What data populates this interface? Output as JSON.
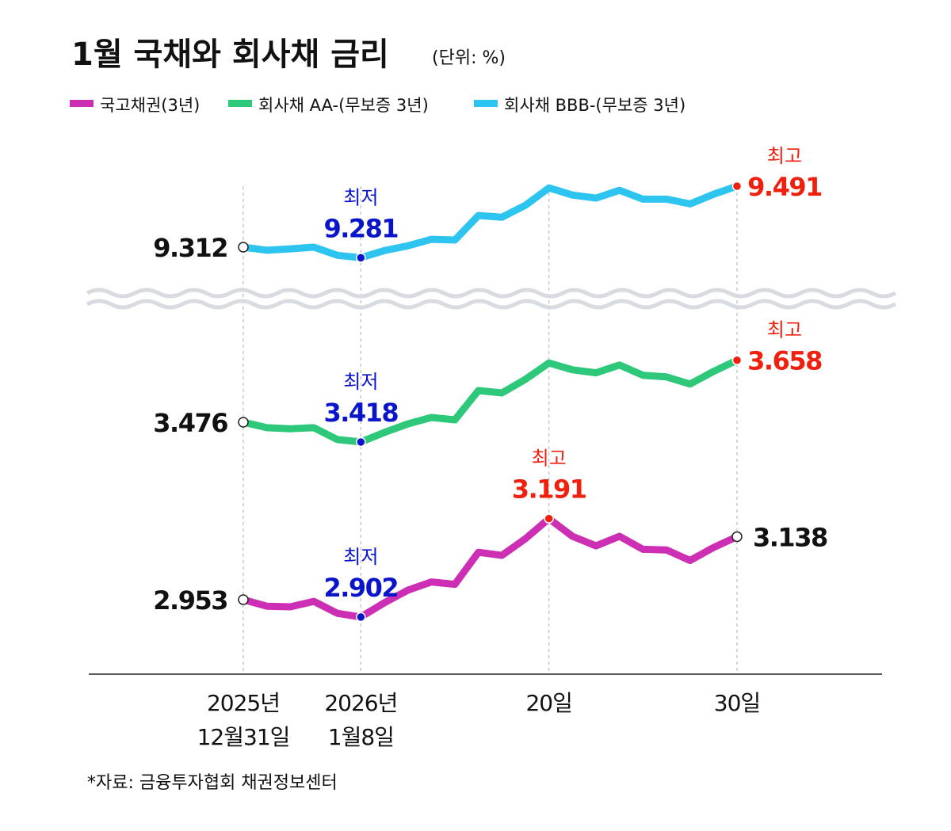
{
  "chart_data": {
    "type": "line",
    "title": "1월 국채와 회사채 금리",
    "unit_note": "(단위: %)",
    "source": "*자료: 금융투자협회 채권정보센터",
    "broken_axis": true,
    "grid": false,
    "legend_placement": "top-left",
    "x": [
      "2025-12-31",
      "2026-01-02",
      "2026-01-05",
      "2026-01-06",
      "2026-01-07",
      "2026-01-08",
      "2026-01-09",
      "2026-01-12",
      "2026-01-13",
      "2026-01-14",
      "2026-01-15",
      "2026-01-16",
      "2026-01-19",
      "2026-01-20",
      "2026-01-21",
      "2026-01-22",
      "2026-01-23",
      "2026-01-26",
      "2026-01-27",
      "2026-01-28",
      "2026-01-29",
      "2026-01-30"
    ],
    "x_ticks": [
      {
        "index": 0,
        "line1": "2025년",
        "line2": "12월31일"
      },
      {
        "index": 5,
        "line1": "2026년",
        "line2": "1월8일"
      },
      {
        "index": 13,
        "line1": "20일",
        "line2": ""
      },
      {
        "index": 21,
        "line1": "30일",
        "line2": ""
      }
    ],
    "series": [
      {
        "name": "회사채 BBB-(무보증 3년)",
        "color": "#2ec4f0",
        "values": [
          9.312,
          9.303,
          9.307,
          9.312,
          9.288,
          9.281,
          9.302,
          9.316,
          9.335,
          9.333,
          9.405,
          9.4,
          9.435,
          9.486,
          9.465,
          9.456,
          9.479,
          9.453,
          9.453,
          9.439,
          9.467,
          9.491
        ]
      },
      {
        "name": "회사채 AA-(무보증 3년)",
        "color": "#2ec87a",
        "values": [
          3.476,
          3.46,
          3.457,
          3.46,
          3.425,
          3.418,
          3.446,
          3.471,
          3.49,
          3.483,
          3.569,
          3.562,
          3.602,
          3.65,
          3.63,
          3.621,
          3.644,
          3.614,
          3.609,
          3.588,
          3.625,
          3.658
        ]
      },
      {
        "name": "국고채권(3년)",
        "color": "#cc2fb3",
        "values": [
          2.953,
          2.934,
          2.932,
          2.948,
          2.913,
          2.902,
          2.944,
          2.981,
          3.005,
          2.998,
          3.092,
          3.083,
          3.132,
          3.191,
          3.139,
          3.111,
          3.139,
          3.101,
          3.099,
          3.068,
          3.106,
          3.138
        ]
      }
    ],
    "legend_order": [
      2,
      1,
      0
    ],
    "annotations": [
      {
        "series": 0,
        "index": 0,
        "label": "",
        "value": "9.312",
        "kind": "start"
      },
      {
        "series": 0,
        "index": 5,
        "label": "최저",
        "value": "9.281",
        "kind": "low"
      },
      {
        "series": 0,
        "index": 21,
        "label": "최고",
        "value": "9.491",
        "kind": "high"
      },
      {
        "series": 1,
        "index": 0,
        "label": "",
        "value": "3.476",
        "kind": "start"
      },
      {
        "series": 1,
        "index": 5,
        "label": "최저",
        "value": "3.418",
        "kind": "low"
      },
      {
        "series": 1,
        "index": 21,
        "label": "최고",
        "value": "3.658",
        "kind": "high"
      },
      {
        "series": 2,
        "index": 0,
        "label": "",
        "value": "2.953",
        "kind": "start"
      },
      {
        "series": 2,
        "index": 5,
        "label": "최저",
        "value": "2.902",
        "kind": "low"
      },
      {
        "series": 2,
        "index": 13,
        "label": "최고",
        "value": "3.191",
        "kind": "high"
      },
      {
        "series": 2,
        "index": 21,
        "label": "",
        "value": "3.138",
        "kind": "end"
      }
    ],
    "colors": {
      "low": "#0a14c8",
      "high": "#f0200f",
      "text": "#111111"
    }
  }
}
